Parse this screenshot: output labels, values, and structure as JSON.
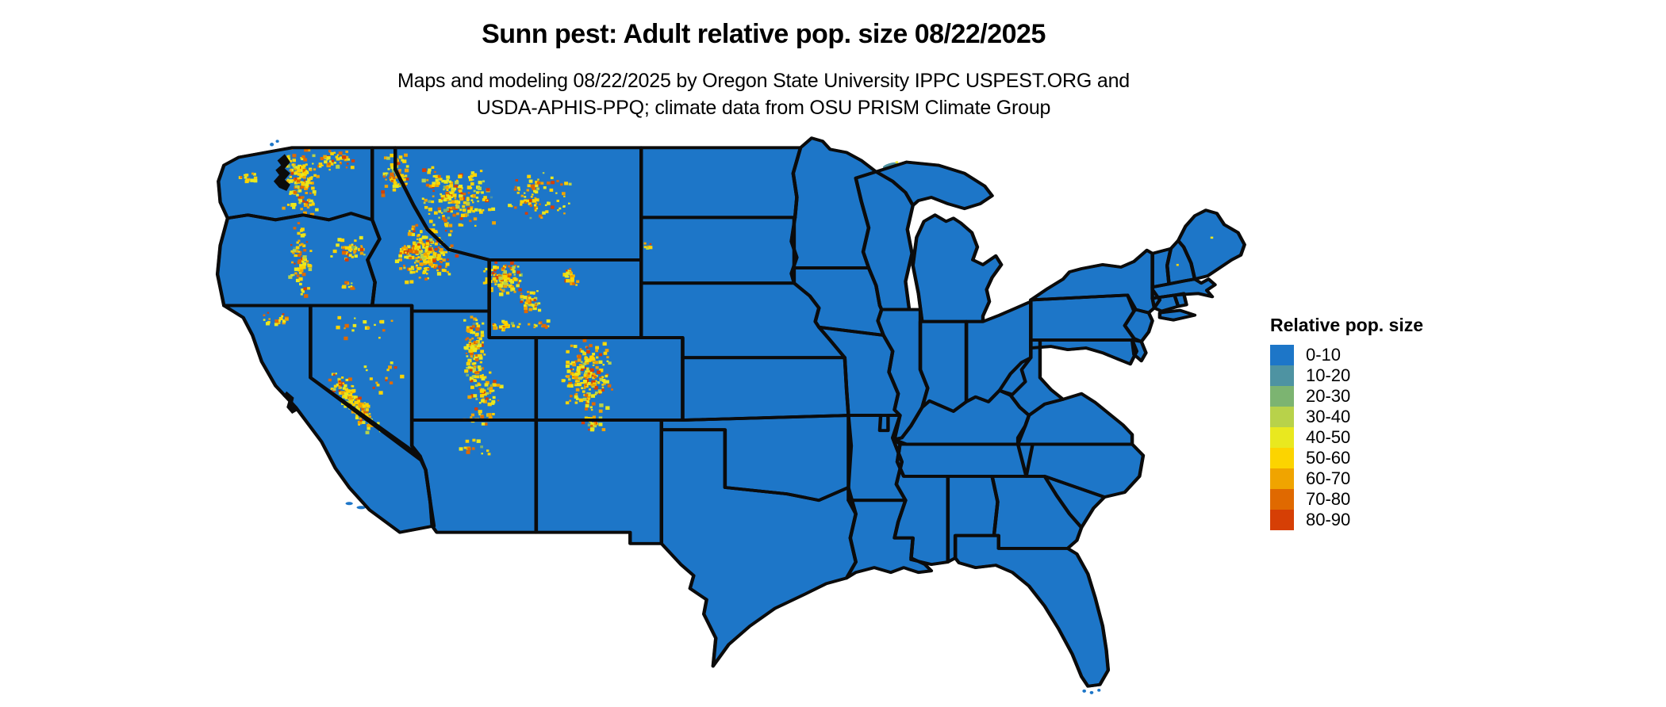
{
  "header": {
    "title": "Sunn pest: Adult relative pop. size 08/22/2025",
    "subtitle_line1": "Maps and modeling 08/22/2025 by Oregon State University IPPC USPEST.ORG and",
    "subtitle_line2": "USDA-APHIS-PPQ; climate data from OSU PRISM Climate Group"
  },
  "legend": {
    "title": "Relative pop. size",
    "items": [
      {
        "label": "0-10",
        "color": "#1d76c8"
      },
      {
        "label": "10-20",
        "color": "#4e93a2"
      },
      {
        "label": "20-30",
        "color": "#7cb471"
      },
      {
        "label": "30-40",
        "color": "#b8d24a"
      },
      {
        "label": "40-50",
        "color": "#e9e81f"
      },
      {
        "label": "50-60",
        "color": "#fcd400"
      },
      {
        "label": "60-70",
        "color": "#f0a400"
      },
      {
        "label": "70-80",
        "color": "#e06900"
      },
      {
        "label": "80-90",
        "color": "#d63f05"
      }
    ]
  },
  "map": {
    "depicts": "Contiguous United States with state boundaries",
    "base_fill": "#1d76c8",
    "border_color": "#0b0b0b",
    "background": "#ffffff"
  }
}
